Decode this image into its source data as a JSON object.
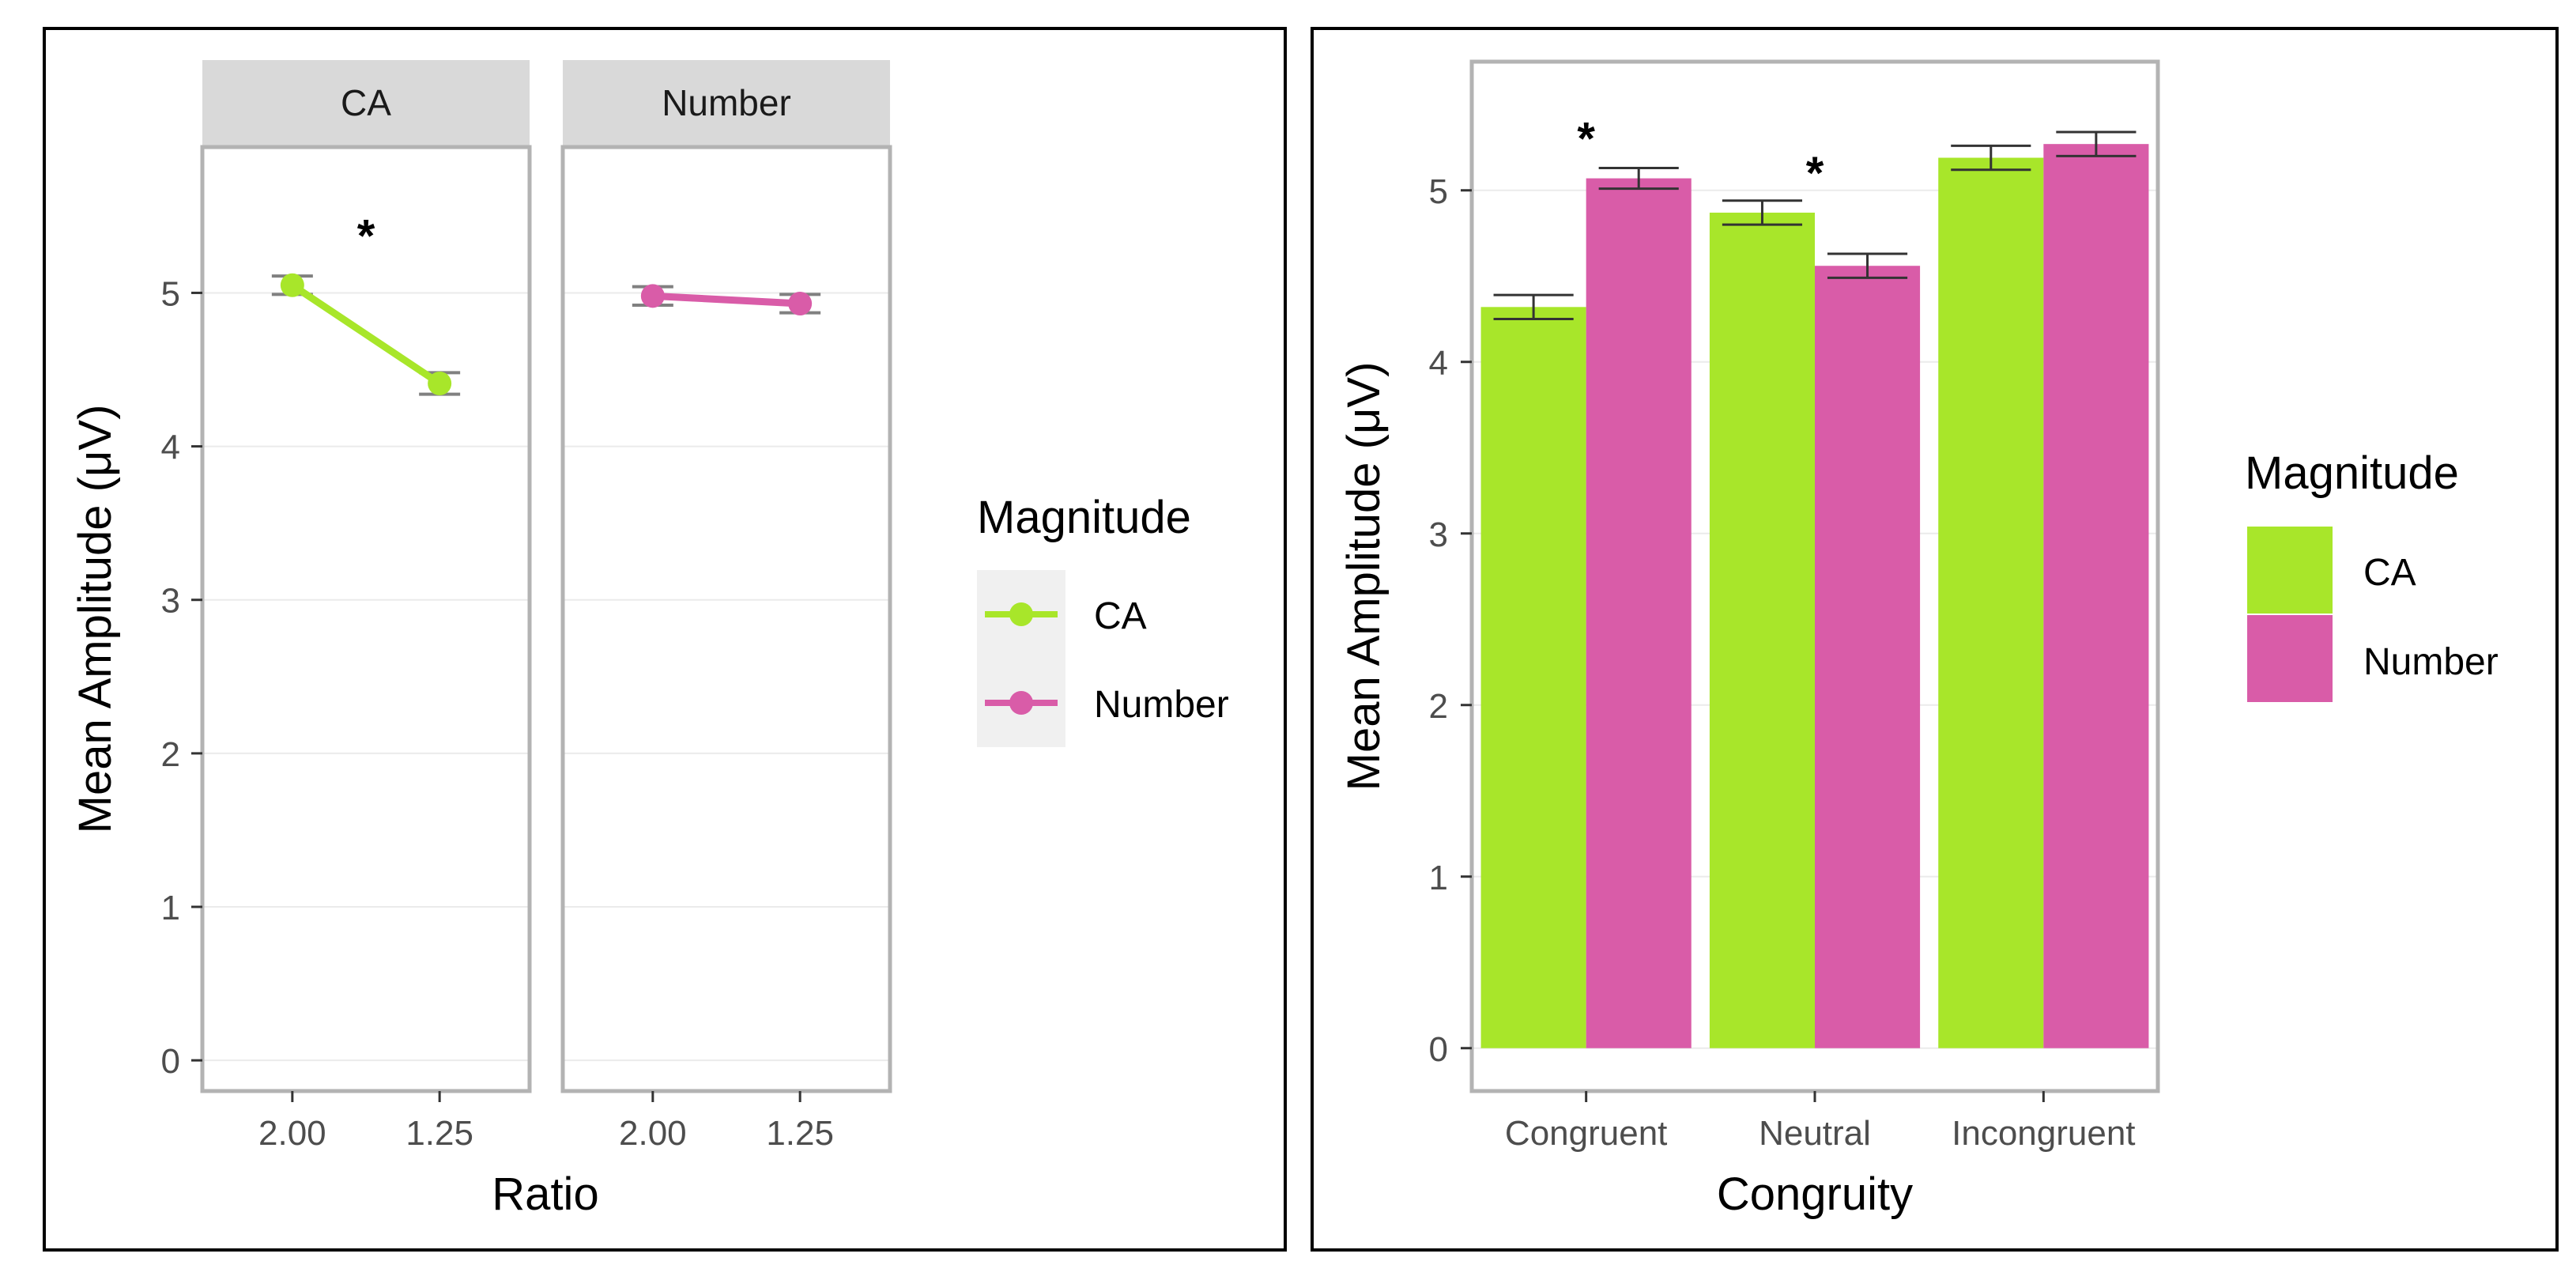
{
  "chart_data": [
    {
      "type": "line",
      "facets": [
        "CA",
        "Number"
      ],
      "x_tick_labels": [
        "2.00",
        "1.25"
      ],
      "xlabel": "Ratio",
      "ylabel": "Mean Amplitude (μV)",
      "ylim": [
        -0.2,
        5.95
      ],
      "y_ticks": [
        "0",
        "1",
        "2",
        "3",
        "4",
        "5"
      ],
      "series": [
        {
          "name": "CA",
          "facet": "CA",
          "color": "#a8e62a",
          "values": [
            5.05,
            4.41
          ],
          "error": [
            0.06,
            0.07
          ]
        },
        {
          "name": "Number",
          "facet": "Number",
          "color": "#d95ca8",
          "values": [
            4.98,
            4.93
          ],
          "error": [
            0.06,
            0.06
          ]
        }
      ],
      "annotations": [
        {
          "facet": "CA",
          "text": "*"
        }
      ],
      "legend": {
        "title": "Magnitude",
        "items": [
          "CA",
          "Number"
        ],
        "position": "right"
      }
    },
    {
      "type": "bar",
      "categories": [
        "Congruent",
        "Neutral",
        "Incongruent"
      ],
      "xlabel": "Congruity",
      "ylabel": "Mean Amplitude (μV)",
      "ylim": [
        -0.25,
        5.75
      ],
      "y_ticks": [
        "0",
        "1",
        "2",
        "3",
        "4",
        "5"
      ],
      "series": [
        {
          "name": "CA",
          "color": "#a8e62a",
          "values": [
            4.32,
            4.87,
            5.19
          ],
          "error": [
            0.07,
            0.07,
            0.07
          ]
        },
        {
          "name": "Number",
          "color": "#d95ca8",
          "values": [
            5.07,
            4.56,
            5.27
          ],
          "error": [
            0.06,
            0.07,
            0.07
          ]
        }
      ],
      "annotations": [
        {
          "category": "Congruent",
          "text": "*"
        },
        {
          "category": "Neutral",
          "text": "*"
        }
      ],
      "legend": {
        "title": "Magnitude",
        "items": [
          "CA",
          "Number"
        ],
        "position": "right"
      }
    }
  ]
}
